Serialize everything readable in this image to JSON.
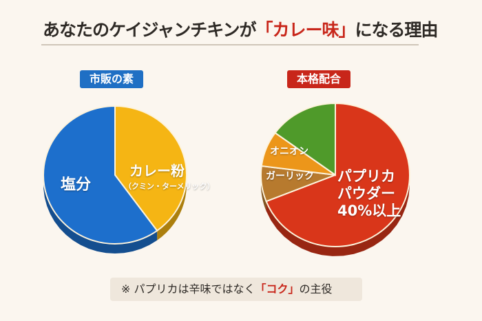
{
  "title": {
    "pre": "あなたのケイジャンチキンが",
    "highlight": "「カレー味」",
    "post": "になる理由"
  },
  "chart_data": [
    {
      "type": "pie",
      "title": "市販の素",
      "start": "12 o'clock",
      "direction": "clockwise",
      "slices": [
        {
          "name": "カレー粉",
          "sub": "（クミン・ターメリック）",
          "value": 40,
          "color": "#f5b514"
        },
        {
          "name": "塩分",
          "value": 60,
          "color": "#1d6fcc"
        }
      ]
    },
    {
      "type": "pie",
      "title": "本格配合",
      "start": "12 o'clock",
      "direction": "clockwise",
      "slices": [
        {
          "name": "パプリカパウダー",
          "label_lines": [
            "パプリカ",
            "パウダー",
            "40%以上"
          ],
          "value": 69,
          "color": "#d9361a"
        },
        {
          "name": "ガーリック",
          "value": 8,
          "color": "#b77a2e"
        },
        {
          "name": "オニオン",
          "value": 8,
          "color": "#ec961a"
        },
        {
          "name": "",
          "value": 15,
          "color": "#4f9a2a"
        }
      ]
    }
  ],
  "note": {
    "pre": "※ パプリカは辛味ではなく",
    "highlight": "「コク」",
    "post": "の主役"
  }
}
